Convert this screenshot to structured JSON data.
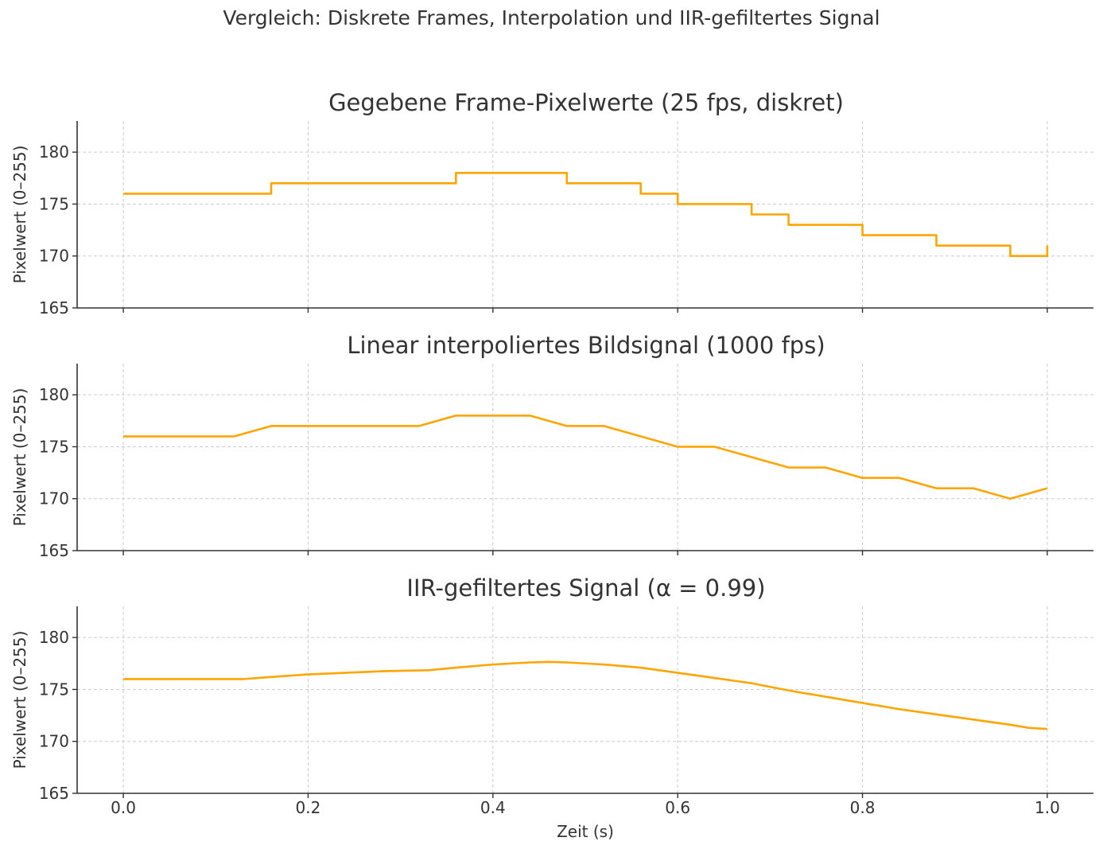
{
  "figure_title": "Vergleich: Diskrete Frames, Interpolation und IIR-gefiltertes Signal",
  "colors": {
    "line": "#FFA500",
    "grid": "#cccccc",
    "axis": "#333333",
    "text": "#333333"
  },
  "chart_data": [
    {
      "type": "line",
      "subtype": "step",
      "title": "Gegebene Frame-Pixelwerte (25 fps, diskret)",
      "xlabel": "",
      "ylabel": "Pixelwert (0–255)",
      "xlim": [
        -0.05,
        1.05
      ],
      "ylim": [
        165,
        183
      ],
      "xticks": [
        0.0,
        0.2,
        0.4,
        0.6,
        0.8,
        1.0
      ],
      "xtick_labels": [],
      "yticks": [
        165,
        170,
        175,
        180
      ],
      "ytick_labels": [
        "165",
        "170",
        "175",
        "180"
      ],
      "grid": true,
      "legend": "none",
      "series": [
        {
          "x": [
            0.0,
            0.04,
            0.08,
            0.12,
            0.16,
            0.2,
            0.24,
            0.28,
            0.32,
            0.36,
            0.4,
            0.44,
            0.48,
            0.52,
            0.56,
            0.6,
            0.64,
            0.68,
            0.72,
            0.76,
            0.8,
            0.84,
            0.88,
            0.92,
            0.96,
            1.0
          ],
          "y": [
            176,
            176,
            176,
            176,
            177,
            177,
            177,
            177,
            177,
            178,
            178,
            178,
            177,
            177,
            176,
            175,
            175,
            174,
            173,
            173,
            172,
            172,
            171,
            171,
            170,
            171
          ]
        }
      ]
    },
    {
      "type": "line",
      "title": "Linear interpoliertes Bildsignal (1000 fps)",
      "xlabel": "",
      "ylabel": "Pixelwert (0–255)",
      "xlim": [
        -0.05,
        1.05
      ],
      "ylim": [
        165,
        183
      ],
      "xticks": [
        0.0,
        0.2,
        0.4,
        0.6,
        0.8,
        1.0
      ],
      "xtick_labels": [],
      "yticks": [
        165,
        170,
        175,
        180
      ],
      "ytick_labels": [
        "165",
        "170",
        "175",
        "180"
      ],
      "grid": true,
      "legend": "none",
      "series": [
        {
          "x": [
            0.0,
            0.04,
            0.08,
            0.12,
            0.16,
            0.2,
            0.24,
            0.28,
            0.32,
            0.36,
            0.4,
            0.44,
            0.48,
            0.52,
            0.56,
            0.6,
            0.64,
            0.68,
            0.72,
            0.76,
            0.8,
            0.84,
            0.88,
            0.92,
            0.96,
            1.0
          ],
          "y": [
            176,
            176,
            176,
            176,
            177,
            177,
            177,
            177,
            177,
            178,
            178,
            178,
            177,
            177,
            176,
            175,
            175,
            174,
            173,
            173,
            172,
            172,
            171,
            171,
            170,
            171
          ]
        }
      ]
    },
    {
      "type": "line",
      "title": "IIR-gefiltertes Signal (α = 0.99)",
      "xlabel": "Zeit (s)",
      "ylabel": "Pixelwert (0–255)",
      "xlim": [
        -0.05,
        1.05
      ],
      "ylim": [
        165,
        183
      ],
      "xticks": [
        0.0,
        0.2,
        0.4,
        0.6,
        0.8,
        1.0
      ],
      "xtick_labels": [
        "0.0",
        "0.2",
        "0.4",
        "0.6",
        "0.8",
        "1.0"
      ],
      "yticks": [
        165,
        170,
        175,
        180
      ],
      "ytick_labels": [
        "165",
        "170",
        "175",
        "180"
      ],
      "grid": true,
      "legend": "none",
      "series": [
        {
          "x": [
            0.0,
            0.04,
            0.08,
            0.13,
            0.16,
            0.2,
            0.24,
            0.28,
            0.33,
            0.36,
            0.4,
            0.44,
            0.46,
            0.48,
            0.52,
            0.56,
            0.6,
            0.64,
            0.68,
            0.72,
            0.76,
            0.8,
            0.84,
            0.88,
            0.92,
            0.96,
            0.98,
            1.0
          ],
          "y": [
            176,
            176,
            176,
            176,
            176.2,
            176.45,
            176.6,
            176.75,
            176.85,
            177.1,
            177.4,
            177.6,
            177.65,
            177.6,
            177.4,
            177.1,
            176.6,
            176.1,
            175.6,
            174.9,
            174.3,
            173.7,
            173.1,
            172.6,
            172.1,
            171.6,
            171.3,
            171.2
          ]
        }
      ]
    }
  ]
}
